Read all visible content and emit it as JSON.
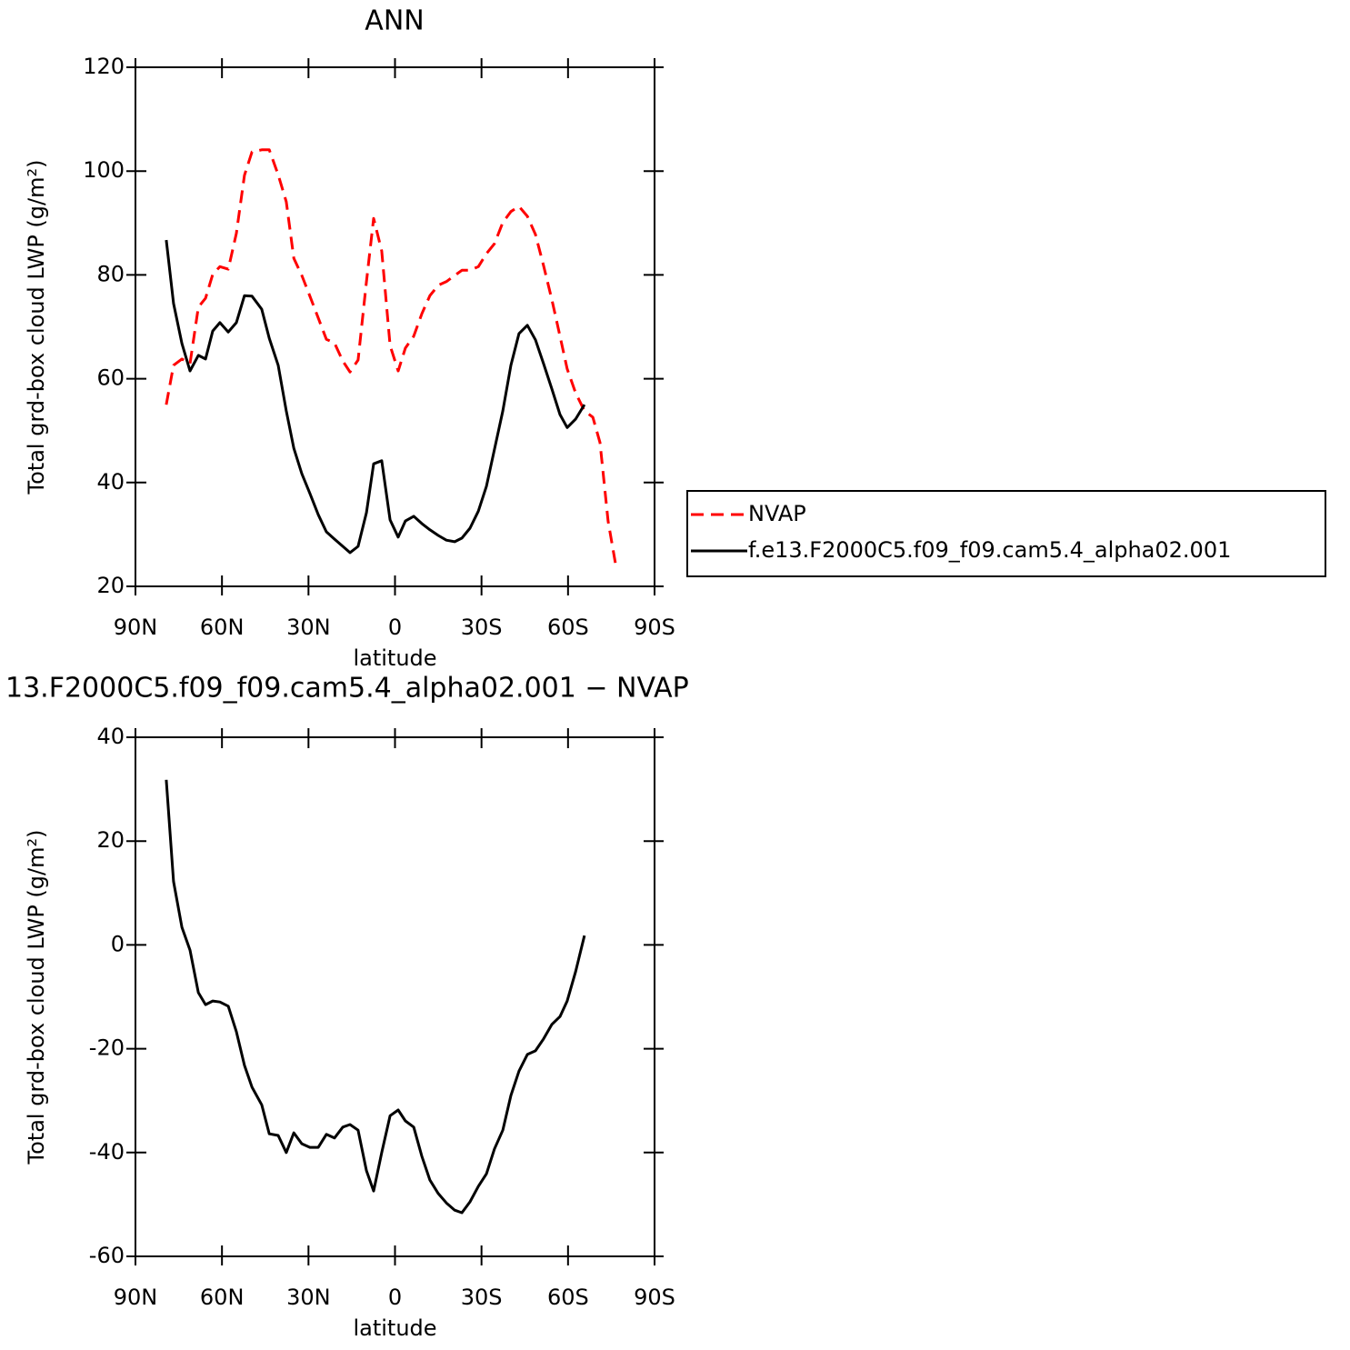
{
  "chart_data": [
    {
      "type": "line",
      "title": "ANN",
      "xlabel": "latitude",
      "ylabel": "Total grd-box cloud LWP (g/m²)",
      "xlim": [
        90,
        -90
      ],
      "xticks": [
        {
          "value": 90,
          "label": "90N"
        },
        {
          "value": 60,
          "label": "60N"
        },
        {
          "value": 30,
          "label": "30N"
        },
        0,
        {
          "value": -30,
          "label": "30S"
        },
        {
          "value": -60,
          "label": "60S"
        },
        {
          "value": -90,
          "label": "90S"
        }
      ],
      "ylim": [
        20,
        120
      ],
      "yticks": [
        20,
        40,
        60,
        80,
        100,
        120
      ],
      "legend": "right",
      "x": [
        79.3,
        76.8,
        73.9,
        71.1,
        68.2,
        65.7,
        63.2,
        60.7,
        57.8,
        55.0,
        52.2,
        49.6,
        46.2,
        43.6,
        40.5,
        37.7,
        35.1,
        32.3,
        29.5,
        26.6,
        23.8,
        21.0,
        18.1,
        15.6,
        12.8,
        9.9,
        7.4,
        4.6,
        1.7,
        -1.1,
        -3.6,
        -6.5,
        -9.3,
        -12.1,
        -15.0,
        -17.8,
        -20.7,
        -23.2,
        -26.0,
        -28.9,
        -31.7,
        -34.5,
        -37.4,
        -40.2,
        -43.0,
        -45.9,
        -48.7,
        -51.5,
        -54.4,
        -57.2,
        -59.7,
        -62.6,
        -65.7,
        -68.6,
        -71.1,
        -73.9,
        -76.5
      ],
      "series": [
        {
          "name": "NVAP",
          "color": "#ff0000",
          "dashed": true,
          "values": [
            55.0,
            62.6,
            63.8,
            62.9,
            73.8,
            75.5,
            80.1,
            81.6,
            81.1,
            88.0,
            99.2,
            103.7,
            104.1,
            104.1,
            99.3,
            94.1,
            83.2,
            79.9,
            75.9,
            71.7,
            67.6,
            66.9,
            63.4,
            61.3,
            63.6,
            78.7,
            90.9,
            84.6,
            66.4,
            61.5,
            65.9,
            68.2,
            72.5,
            76.0,
            78.0,
            78.7,
            79.9,
            80.9,
            80.9,
            81.6,
            84.1,
            86.0,
            90.1,
            92.2,
            93.2,
            91.3,
            87.8,
            81.8,
            75.2,
            68.2,
            61.9,
            57.3,
            53.8,
            52.6,
            47.7,
            32.6,
            24.2
          ]
        },
        {
          "name": "f.e13.F2000C5.f09_f09.cam5.4_alpha02.001",
          "color": "#000000",
          "dashed": false,
          "values": [
            86.7,
            74.5,
            66.8,
            61.5,
            64.5,
            63.8,
            69.2,
            70.8,
            69.0,
            70.8,
            76.0,
            75.9,
            73.4,
            67.8,
            62.6,
            53.8,
            46.6,
            41.7,
            37.9,
            33.8,
            30.5,
            29.1,
            27.7,
            26.5,
            27.7,
            34.2,
            43.6,
            44.2,
            32.8,
            29.5,
            32.6,
            33.5,
            32.1,
            30.9,
            29.8,
            28.9,
            28.6,
            29.3,
            31.2,
            34.5,
            39.3,
            46.4,
            53.8,
            62.6,
            68.7,
            70.3,
            67.5,
            62.9,
            58.0,
            53.1,
            50.6,
            52.2,
            55.0,
            null,
            null,
            null,
            null
          ]
        }
      ]
    },
    {
      "type": "line",
      "title": "13.F2000C5.f09_f09.cam5.4_alpha02.001 − NVAP",
      "xlabel": "latitude",
      "ylabel": "Total grd-box cloud LWP (g/m²)",
      "xlim": [
        90,
        -90
      ],
      "xticks": [
        {
          "value": 90,
          "label": "90N"
        },
        {
          "value": 60,
          "label": "60N"
        },
        {
          "value": 30,
          "label": "30N"
        },
        0,
        {
          "value": -30,
          "label": "30S"
        },
        {
          "value": -60,
          "label": "60S"
        },
        {
          "value": -90,
          "label": "90S"
        }
      ],
      "ylim": [
        -60,
        40
      ],
      "yticks": [
        -60,
        -40,
        -20,
        0,
        20,
        40
      ],
      "x": [
        79.3,
        76.8,
        73.9,
        71.1,
        68.2,
        65.7,
        63.2,
        60.7,
        57.8,
        55.0,
        52.2,
        49.6,
        46.2,
        43.6,
        40.5,
        37.7,
        35.1,
        32.3,
        29.5,
        26.6,
        23.8,
        21.0,
        18.1,
        15.6,
        12.8,
        9.9,
        7.4,
        4.6,
        1.7,
        -1.1,
        -3.6,
        -6.5,
        -9.3,
        -12.1,
        -15.0,
        -17.8,
        -20.7,
        -23.2,
        -26.0,
        -28.9,
        -31.7,
        -34.5,
        -37.4,
        -40.2,
        -43.0,
        -45.9,
        -48.7,
        -51.5,
        -54.4,
        -57.2,
        -59.7,
        -62.6,
        -65.7
      ],
      "series": [
        {
          "color": "#000000",
          "dashed": false,
          "values": [
            31.8,
            12.2,
            3.4,
            -1.0,
            -9.2,
            -11.5,
            -10.8,
            -11.0,
            -11.8,
            -16.7,
            -23.2,
            -27.4,
            -30.8,
            -36.4,
            -36.7,
            -40.0,
            -36.2,
            -38.3,
            -39.0,
            -39.0,
            -36.5,
            -37.2,
            -35.1,
            -34.6,
            -35.7,
            -43.5,
            -47.4,
            -40.0,
            -32.9,
            -31.8,
            -33.9,
            -35.1,
            -40.7,
            -45.3,
            -47.9,
            -49.7,
            -51.1,
            -51.6,
            -49.5,
            -46.5,
            -44.1,
            -39.3,
            -35.7,
            -29.0,
            -24.3,
            -21.1,
            -20.4,
            -18.1,
            -15.3,
            -13.8,
            -10.8,
            -5.2,
            1.8
          ]
        }
      ]
    }
  ]
}
